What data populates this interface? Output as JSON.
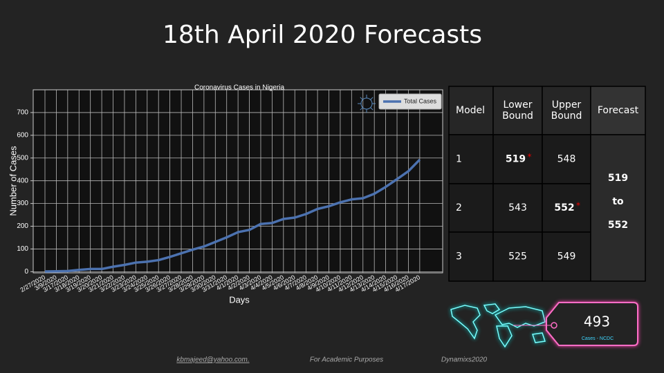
{
  "title": "18th April 2020 Forecasts",
  "chart_data": {
    "type": "line",
    "title": "Coronavirus Cases in Nigeria",
    "x_label": "Days",
    "y_label": "Number of Cases",
    "categories": [
      "2/27/2020",
      "3/9/2020",
      "3/17/2020",
      "3/18/2020",
      "3/19/2020",
      "3/20/2020",
      "3/21/2020",
      "3/22/2020",
      "3/23/2020",
      "3/24/2020",
      "3/25/2020",
      "3/26/2020",
      "3/27/2020",
      "3/28/2020",
      "3/29/2020",
      "3/30/2020",
      "3/31/2020",
      "4/1/2020",
      "4/2/2020",
      "4/3/2020",
      "4/4/2020",
      "4/5/2020",
      "4/6/2020",
      "4/7/2020",
      "4/8/2020",
      "4/9/2020",
      "4/10/2020",
      "4/11/2020",
      "4/12/2020",
      "4/13/2020",
      "4/14/2020",
      "4/15/2020",
      "4/16/2020",
      "4/17/2020"
    ],
    "series": [
      {
        "name": "Total Cases",
        "color": "#4c72b0",
        "values": [
          1,
          2,
          3,
          8,
          12,
          12,
          22,
          30,
          40,
          44,
          51,
          65,
          81,
          97,
          111,
          131,
          151,
          174,
          184,
          210,
          214,
          232,
          238,
          254,
          276,
          288,
          305,
          318,
          323,
          343,
          373,
          407,
          442,
          493
        ]
      }
    ],
    "ylim": [
      -5,
      800
    ],
    "yticks": [
      0,
      100,
      200,
      300,
      400,
      500,
      600,
      700
    ],
    "grid": true,
    "legend": "upper right"
  },
  "table": {
    "header": [
      "Model",
      "Lower Bound",
      "Upper Bound",
      "Forecast"
    ],
    "rows": [
      [
        "1",
        "519",
        "548"
      ],
      [
        "2",
        "543",
        "552"
      ],
      [
        "3",
        "525",
        "549"
      ]
    ],
    "marker": "*",
    "forecast": [
      "519",
      "to",
      "552"
    ]
  },
  "tag": {
    "value": "493",
    "label": "Cases - NCDC"
  },
  "footer": [
    "kbmajeed@yahoo.com.",
    "For Academic Purposes",
    "Dynamixs2020"
  ]
}
